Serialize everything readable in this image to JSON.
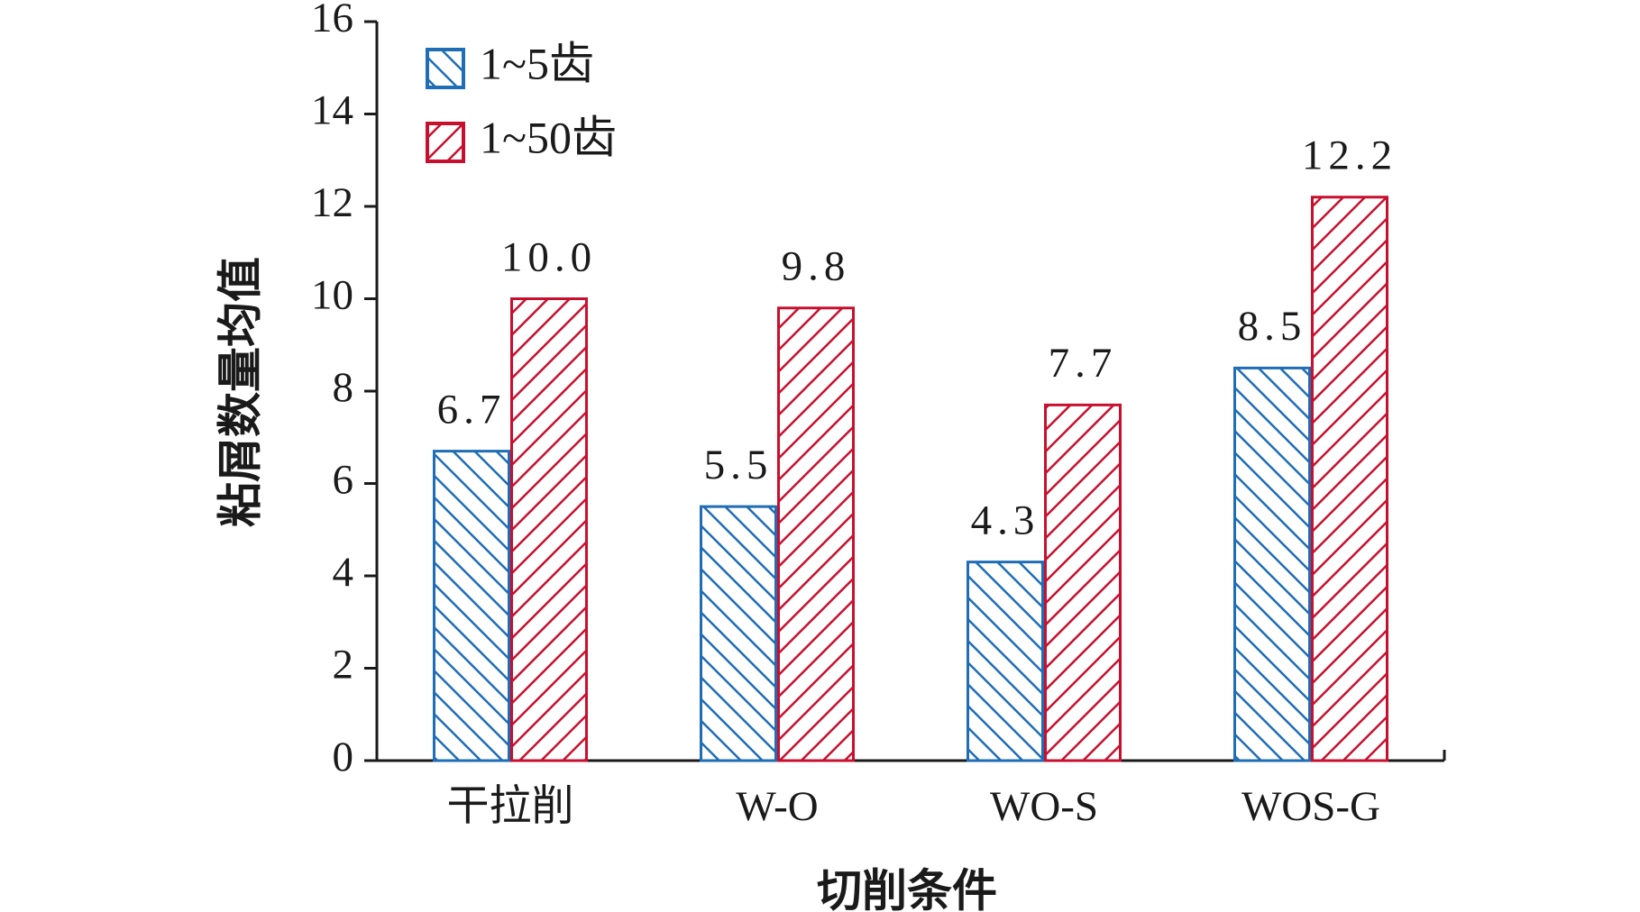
{
  "chart_data": {
    "type": "bar",
    "x_label": "切削条件",
    "y_label": "粘屑数量均值",
    "categories": [
      "干拉削",
      "W-O",
      "WO-S",
      "WOS-G"
    ],
    "series": [
      {
        "name": "1~5齿",
        "color": "#1f6db5",
        "hatch": "backslash",
        "values": [
          6.7,
          5.5,
          4.3,
          8.5
        ]
      },
      {
        "name": "1~50齿",
        "color": "#c8102e",
        "hatch": "slash",
        "values": [
          10.0,
          9.8,
          7.7,
          12.2
        ],
        "value_labels": [
          "10.0",
          "9.8",
          "7.7",
          "12.2"
        ]
      }
    ],
    "ylim": [
      0,
      16
    ],
    "yticks": [
      0,
      2,
      4,
      6,
      8,
      10,
      12,
      14,
      16
    ],
    "legend": "upper-left"
  }
}
